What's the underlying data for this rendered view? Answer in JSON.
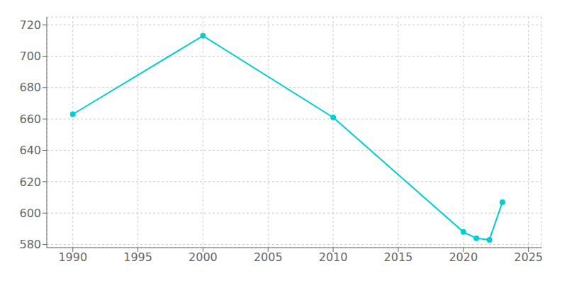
{
  "chart_data": {
    "type": "line",
    "x": [
      1990,
      2000,
      2010,
      2020,
      2021,
      2022,
      2023
    ],
    "values": [
      663,
      713,
      661,
      588,
      584,
      583,
      607
    ],
    "color": "#00CED1",
    "marker": "circle",
    "xlim": [
      1988,
      2026
    ],
    "ylim": [
      578,
      725
    ],
    "xticks": [
      1990,
      1995,
      2000,
      2005,
      2010,
      2015,
      2020,
      2025
    ],
    "yticks": [
      580,
      600,
      620,
      640,
      660,
      680,
      700,
      720
    ],
    "grid": true
  }
}
